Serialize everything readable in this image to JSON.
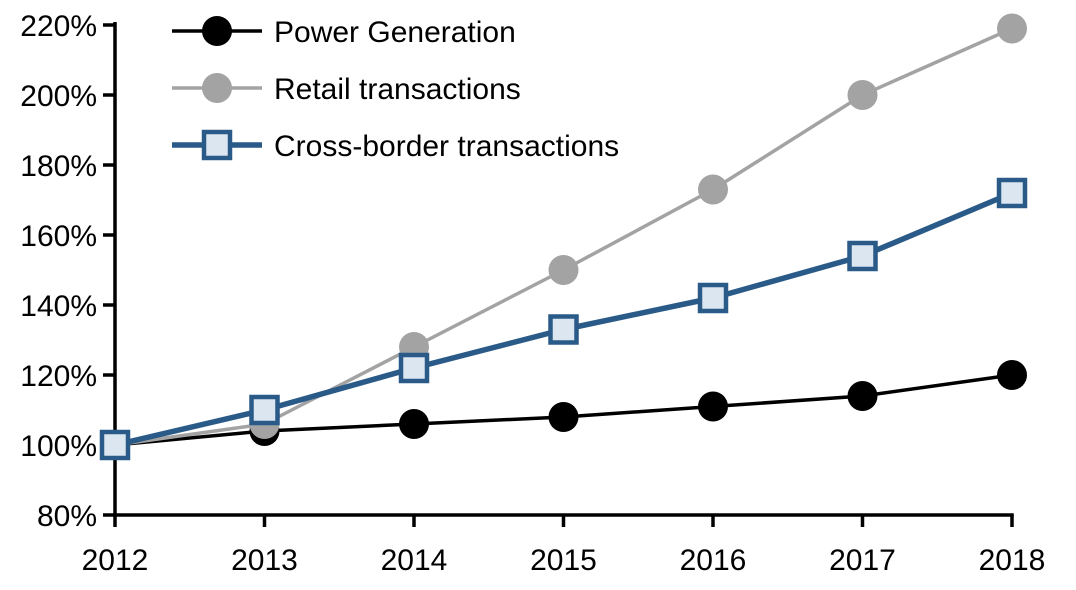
{
  "chart_data": {
    "type": "line",
    "title": "",
    "xlabel": "",
    "ylabel": "",
    "categories": [
      "2012",
      "2013",
      "2014",
      "2015",
      "2016",
      "2017",
      "2018"
    ],
    "series": [
      {
        "name": "Power Generation",
        "values": [
          100,
          104,
          106,
          108,
          111,
          114,
          120
        ],
        "color": "#000000",
        "marker": "circle",
        "marker_fill": "#000000",
        "line_width": 3.5
      },
      {
        "name": "Retail transactions",
        "values": [
          100,
          106,
          128,
          150,
          173,
          200,
          219
        ],
        "color": "#a3a3a3",
        "marker": "circle",
        "marker_fill": "#a3a3a3",
        "line_width": 3.5
      },
      {
        "name": "Cross-border transactions",
        "values": [
          100,
          110,
          122,
          133,
          142,
          154,
          172
        ],
        "color": "#2a5a87",
        "marker": "square",
        "marker_fill": "#dce6f1",
        "line_width": 5.5
      }
    ],
    "ylim": [
      80,
      220
    ],
    "ytick_step": 20,
    "ytick_suffix": "%",
    "legend_position": "top-left",
    "grid": false,
    "axis_color": "#000000",
    "background": "#ffffff"
  }
}
